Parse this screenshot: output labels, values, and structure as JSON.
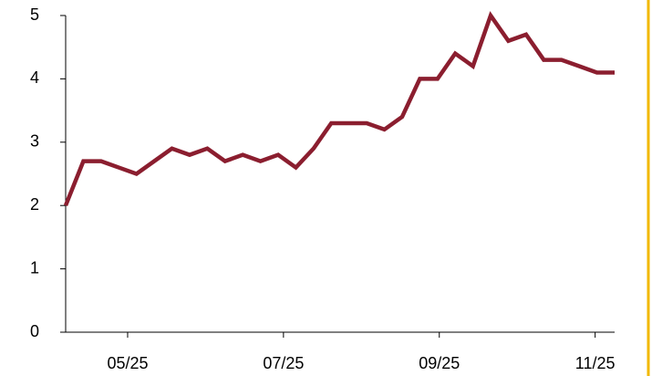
{
  "chart_data": {
    "type": "line",
    "x": [
      0,
      1,
      2,
      3,
      4,
      5,
      6,
      7,
      8,
      9,
      10,
      11,
      12,
      13,
      14,
      15,
      16,
      17,
      18,
      19,
      20,
      21,
      22,
      23,
      24,
      25,
      26,
      27,
      28,
      29,
      30,
      31
    ],
    "series": [
      {
        "color": "#8b1e2f",
        "values": [
          2.0,
          2.7,
          2.7,
          2.6,
          2.5,
          2.7,
          2.9,
          2.8,
          2.9,
          2.7,
          2.8,
          2.7,
          2.8,
          2.6,
          2.9,
          3.3,
          3.3,
          3.3,
          3.2,
          3.4,
          4.0,
          4.0,
          4.4,
          4.2,
          5.0,
          4.6,
          4.7,
          4.3,
          4.3,
          4.2,
          4.1,
          4.1
        ]
      }
    ],
    "xlim": [
      0,
      31
    ],
    "xticks": [
      {
        "value": 3.5,
        "label": "05/25"
      },
      {
        "value": 12.3,
        "label": "07/25"
      },
      {
        "value": 21.1,
        "label": "09/25"
      },
      {
        "value": 29.9,
        "label": "11/25"
      }
    ],
    "ylim": [
      0,
      5
    ],
    "yticks": [
      0,
      1,
      2,
      3,
      4,
      5
    ]
  }
}
